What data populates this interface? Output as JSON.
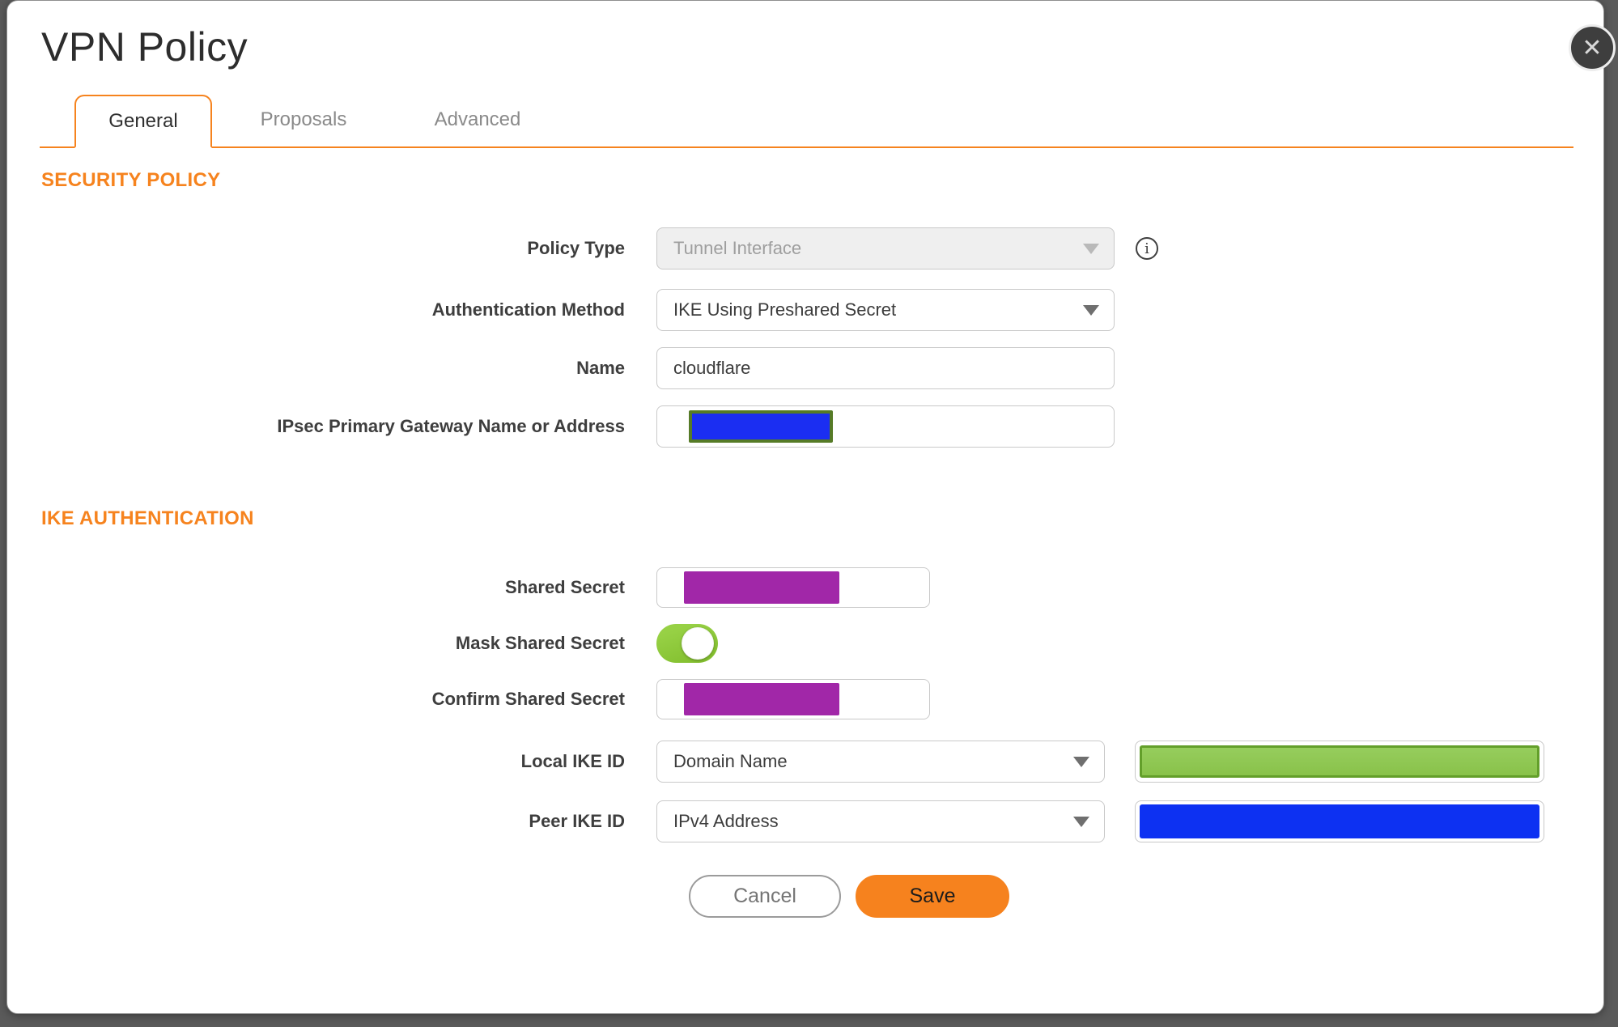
{
  "dialog": {
    "title": "VPN Policy",
    "close_icon": "✕"
  },
  "tabs": [
    {
      "label": "General",
      "active": true
    },
    {
      "label": "Proposals",
      "active": false
    },
    {
      "label": "Advanced",
      "active": false
    }
  ],
  "security_policy": {
    "heading": "SECURITY POLICY",
    "policy_type": {
      "label": "Policy Type",
      "value": "Tunnel Interface",
      "disabled": true
    },
    "auth_method": {
      "label": "Authentication Method",
      "value": "IKE Using Preshared Secret"
    },
    "name": {
      "label": "Name",
      "value": "cloudflare"
    },
    "gateway": {
      "label": "IPsec Primary Gateway Name or Address",
      "value_state": "redacted"
    }
  },
  "ike_authentication": {
    "heading": "IKE AUTHENTICATION",
    "shared_secret": {
      "label": "Shared Secret",
      "value_state": "redacted"
    },
    "mask_shared_secret": {
      "label": "Mask Shared Secret",
      "toggle_state": "on"
    },
    "confirm_shared_secret": {
      "label": "Confirm Shared Secret",
      "value_state": "redacted"
    },
    "local_ike_id": {
      "label": "Local IKE ID",
      "value": "Domain Name",
      "id_value_state": "redacted"
    },
    "peer_ike_id": {
      "label": "Peer IKE ID",
      "value": "IPv4 Address",
      "id_value_state": "redacted"
    }
  },
  "buttons": {
    "cancel": "Cancel",
    "save": "Save"
  },
  "colors": {
    "accent_orange": "#f6831e",
    "toggle_green": "#8cc63f",
    "redaction_purple": "#a127a8",
    "redaction_blue": "#1b2ef2",
    "redaction_green_fill": "#8fc854",
    "redaction_green_border": "#639f2a",
    "redaction_gateway_border": "#567b27",
    "backdrop_gray": "#5a5a5a"
  }
}
